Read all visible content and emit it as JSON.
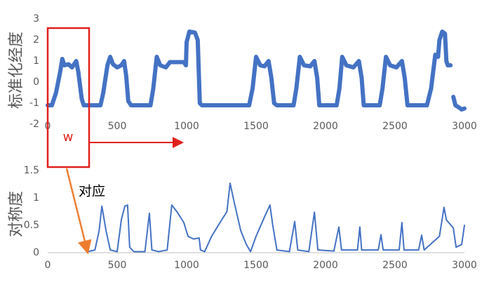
{
  "chart_data": [
    {
      "type": "line",
      "ylabel": "标准化经度",
      "color": "#4472c4",
      "marker": true,
      "xlim": [
        0,
        3000
      ],
      "xticks": [
        0,
        500,
        1000,
        1500,
        2000,
        2500,
        3000
      ],
      "ylim": [
        -2,
        3
      ],
      "yticks": [
        -2,
        -1,
        0,
        1,
        2,
        3
      ],
      "x": [
        0,
        30,
        60,
        90,
        105,
        120,
        150,
        175,
        205,
        220,
        245,
        260,
        380,
        400,
        430,
        450,
        470,
        500,
        530,
        550,
        565,
        580,
        600,
        740,
        760,
        785,
        810,
        850,
        880,
        980,
        995,
        1000,
        1020,
        1060,
        1080,
        1095,
        1110,
        1450,
        1475,
        1500,
        1530,
        1560,
        1590,
        1610,
        1630,
        1650,
        1770,
        1790,
        1815,
        1845,
        1890,
        1920,
        1940,
        1955,
        2080,
        2100,
        2120,
        2150,
        2200,
        2240,
        2260,
        2275,
        2390,
        2410,
        2435,
        2465,
        2510,
        2550,
        2570,
        2590,
        2730,
        2760,
        2790,
        2810,
        2820,
        2840,
        2860,
        2870,
        2880,
        2900,
        2910,
        2920,
        2935,
        2960,
        2980,
        3000
      ],
      "values": [
        -1.1,
        -1.1,
        -0.5,
        0.5,
        1.1,
        0.8,
        0.85,
        0.7,
        1.0,
        0.5,
        -0.8,
        -1.1,
        -1.1,
        -0.5,
        0.8,
        1.2,
        0.85,
        0.7,
        0.8,
        1.0,
        0.3,
        -0.9,
        -1.1,
        -1.1,
        -0.3,
        1.2,
        0.8,
        0.7,
        0.95,
        0.95,
        0.8,
        1.9,
        2.4,
        2.35,
        2.0,
        -1.0,
        -1.1,
        -1.1,
        -0.3,
        1.2,
        0.8,
        0.75,
        1.0,
        0.2,
        -1.0,
        -1.1,
        -1.1,
        -0.3,
        1.2,
        0.8,
        0.75,
        1.0,
        0.2,
        -1.1,
        -1.1,
        -0.3,
        1.2,
        0.8,
        0.7,
        1.0,
        0.2,
        -1.1,
        -1.1,
        -0.3,
        1.2,
        0.8,
        0.7,
        1.0,
        0.2,
        -1.1,
        -1.1,
        -0.3,
        1.3,
        1.2,
        2.0,
        2.4,
        2.3,
        1.0,
        0.8,
        0.8,
        null,
        -0.7,
        -1.1,
        -1.2,
        -1.3,
        -1.25
      ],
      "annotations": [
        {
          "text": "w"
        }
      ]
    },
    {
      "type": "line",
      "ylabel": "对称度",
      "color": "#4472c4",
      "marker": false,
      "xlim": [
        0,
        3000
      ],
      "xticks": [
        0,
        500,
        1000,
        1500,
        2000,
        2500,
        3000
      ],
      "ylim": [
        0,
        1.5
      ],
      "yticks": [
        0,
        0.5,
        1,
        1.5
      ],
      "x": [
        290,
        340,
        370,
        390,
        420,
        450,
        500,
        530,
        555,
        575,
        590,
        620,
        700,
        732,
        750,
        800,
        860,
        893,
        930,
        980,
        1010,
        1050,
        1090,
        1100,
        1130,
        1180,
        1240,
        1290,
        1313,
        1340,
        1390,
        1430,
        1460,
        1500,
        1560,
        1600,
        1620,
        1650,
        1740,
        1778,
        1800,
        1880,
        1920,
        1945,
        2060,
        2096,
        2115,
        2230,
        2247,
        2260,
        2380,
        2399,
        2415,
        2530,
        2550,
        2565,
        2670,
        2692,
        2710,
        2820,
        2853,
        2870,
        2920,
        2940,
        2980,
        3000
      ],
      "values": [
        0.02,
        0.05,
        0.4,
        0.85,
        0.4,
        0.05,
        0.02,
        0.6,
        0.85,
        0.87,
        0.1,
        0.02,
        0.02,
        0.72,
        0.05,
        0.02,
        0.05,
        0.87,
        0.75,
        0.55,
        0.3,
        0.25,
        0.27,
        0.05,
        0.02,
        0.3,
        0.55,
        0.75,
        1.27,
        0.95,
        0.4,
        0.15,
        0.02,
        0.3,
        0.65,
        0.87,
        0.5,
        0.05,
        0.02,
        0.57,
        0.05,
        0.02,
        0.74,
        0.05,
        0.03,
        0.47,
        0.05,
        0.05,
        0.47,
        0.05,
        0.05,
        0.33,
        0.05,
        0.05,
        0.55,
        0.05,
        0.05,
        0.32,
        0.05,
        0.3,
        0.83,
        0.6,
        0.45,
        0.1,
        0.15,
        0.5
      ],
      "annotations": [
        {
          "text": "对应"
        }
      ]
    }
  ]
}
